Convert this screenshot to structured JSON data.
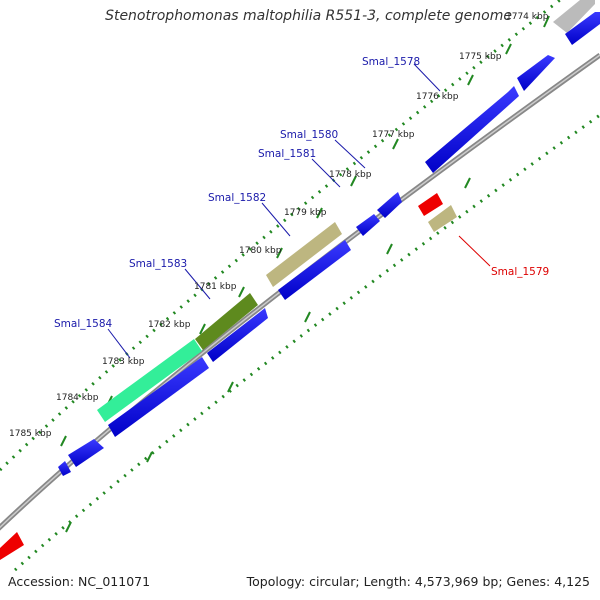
{
  "title": "Stenotrophomonas maltophilia R551-3, complete genome",
  "footer": {
    "accession": "Accession: NC_011071",
    "topology": "Topology: circular; Length: 4,573,969 bp; Genes: 4,125"
  },
  "kbp_labels": [
    "1774 kbp",
    "1775 kbp",
    "1776 kbp",
    "1777 kbp",
    "1778 kbp",
    "1779 kbp",
    "1780 kbp",
    "1781 kbp",
    "1782 kbp",
    "1783 kbp",
    "1784 kbp",
    "1785 kbp"
  ],
  "gene_labels": [
    {
      "text": "Smal_1578",
      "strand": "forward"
    },
    {
      "text": "Smal_1580",
      "strand": "forward"
    },
    {
      "text": "Smal_1581",
      "strand": "forward"
    },
    {
      "text": "Smal_1582",
      "strand": "forward"
    },
    {
      "text": "Smal_1583",
      "strand": "forward"
    },
    {
      "text": "Smal_1584",
      "strand": "forward"
    },
    {
      "text": "Smal_1579",
      "strand": "reverse"
    }
  ],
  "colors": {
    "cds": "#0000ee",
    "trna_selected": "#ee0000",
    "backbone": "#888888",
    "tick": "#228822",
    "gene_label_forward": "#1a1aaa",
    "gene_label_reverse": "#dd0000",
    "feature_khaki": "#bdb680",
    "feature_olive": "#5e8a1e",
    "feature_aqua": "#33ee99",
    "feature_grey": "#bbbbbb"
  }
}
